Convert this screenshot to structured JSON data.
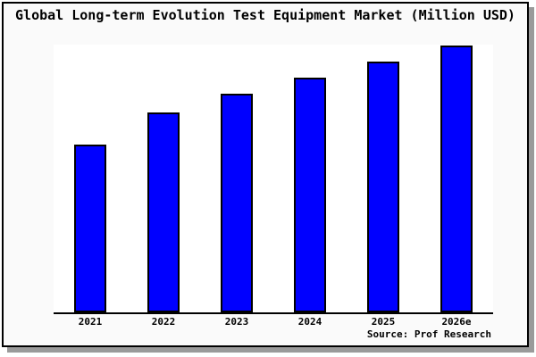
{
  "source": "Source: Prof Research",
  "chart_data": {
    "type": "bar",
    "title": "Global Long-term Evolution Test Equipment Market (Million USD)",
    "categories": [
      "2021",
      "2022",
      "2023",
      "2024",
      "2025",
      "2026e"
    ],
    "values": [
      63,
      75,
      82,
      88,
      94,
      100
    ],
    "value_scale": "relative bar height as % of tallest bar (2026e); no y-axis or value labels are shown in the chart",
    "xlabel": "",
    "ylabel": "",
    "ylim": [
      0,
      100
    ],
    "legend": false,
    "grid": false,
    "y_axis_ticks": false,
    "bar_color": "#0000ff",
    "bar_border_color": "#000000"
  },
  "colors": {
    "card_background": "#fafafa",
    "plot_background": "#ffffff",
    "border": "#000000",
    "shadow": "#9a9a9a",
    "text": "#000000"
  }
}
